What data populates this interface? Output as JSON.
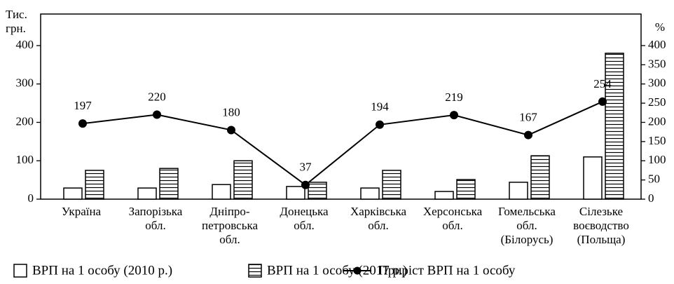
{
  "chart_data": {
    "type": "bar",
    "categories": [
      [
        "Україна"
      ],
      [
        "Запорізька",
        "обл."
      ],
      [
        "Дніпро-",
        "петровська",
        "обл."
      ],
      [
        "Донецька",
        "обл."
      ],
      [
        "Харківська",
        "обл."
      ],
      [
        "Херсонська",
        "обл."
      ],
      [
        "Гомельська",
        "обл.",
        "(Білорусь)"
      ],
      [
        "Сілезьке",
        "воєводство",
        "(Польща)"
      ]
    ],
    "series": [
      {
        "name": "ВРП на 1 особу (2010 р.)",
        "type": "bar",
        "color": "#ffffff",
        "values": [
          29,
          29,
          38,
          33,
          29,
          20,
          44,
          110
        ]
      },
      {
        "name": "ВРП на 1 особу (2017 р.)",
        "type": "bar",
        "color": "#ffffff",
        "pattern": "horizontal-lines",
        "values": [
          75,
          80,
          100,
          44,
          75,
          51,
          113,
          380
        ]
      },
      {
        "name": "Приріст ВРП на 1 особу",
        "type": "line",
        "axis": "y2",
        "color": "#000000",
        "values": [
          197,
          220,
          180,
          37,
          194,
          219,
          167,
          254
        ]
      }
    ],
    "y_label": [
      "Тис.",
      "грн."
    ],
    "y2_label": "%",
    "ylim": [
      0,
      400
    ],
    "yticks": [
      0,
      100,
      200,
      300,
      400
    ],
    "y2lim": [
      0,
      400
    ],
    "y2ticks": [
      0,
      50,
      100,
      150,
      200,
      250,
      300,
      350,
      400
    ],
    "legend": "bottom"
  }
}
